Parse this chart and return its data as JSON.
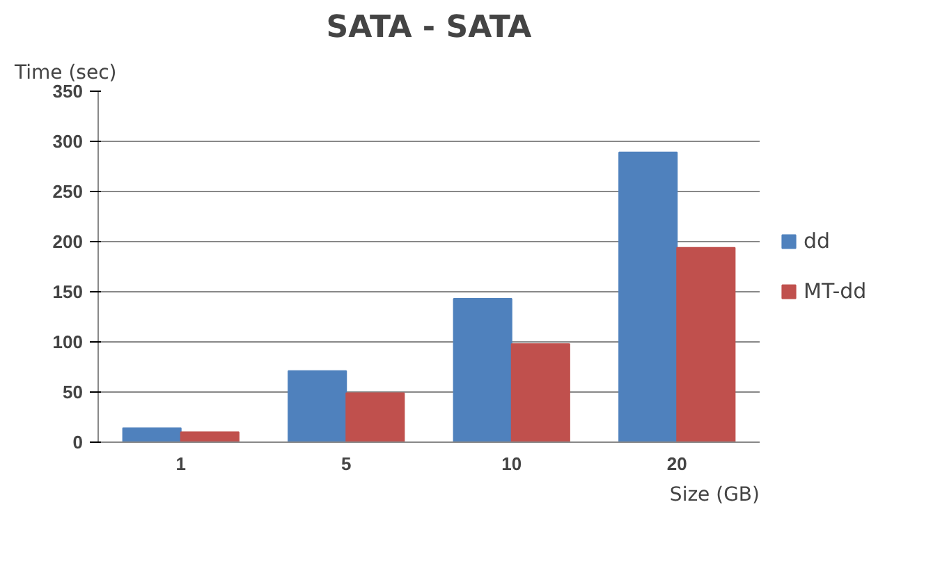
{
  "chart_data": {
    "type": "bar",
    "title": "SATA - SATA",
    "xlabel": "Size (GB)",
    "ylabel": "Time (sec)",
    "categories": [
      "1",
      "5",
      "10",
      "20"
    ],
    "series": [
      {
        "name": "dd",
        "color": "#4f81bd",
        "values": [
          14,
          71,
          143,
          289
        ]
      },
      {
        "name": "MT-dd",
        "color": "#c0504d",
        "values": [
          10,
          49,
          98,
          194
        ]
      }
    ],
    "ylim": [
      0,
      350
    ],
    "yticks": [
      0,
      50,
      100,
      150,
      200,
      250,
      300,
      350
    ],
    "grid": "y",
    "legend": "right"
  }
}
